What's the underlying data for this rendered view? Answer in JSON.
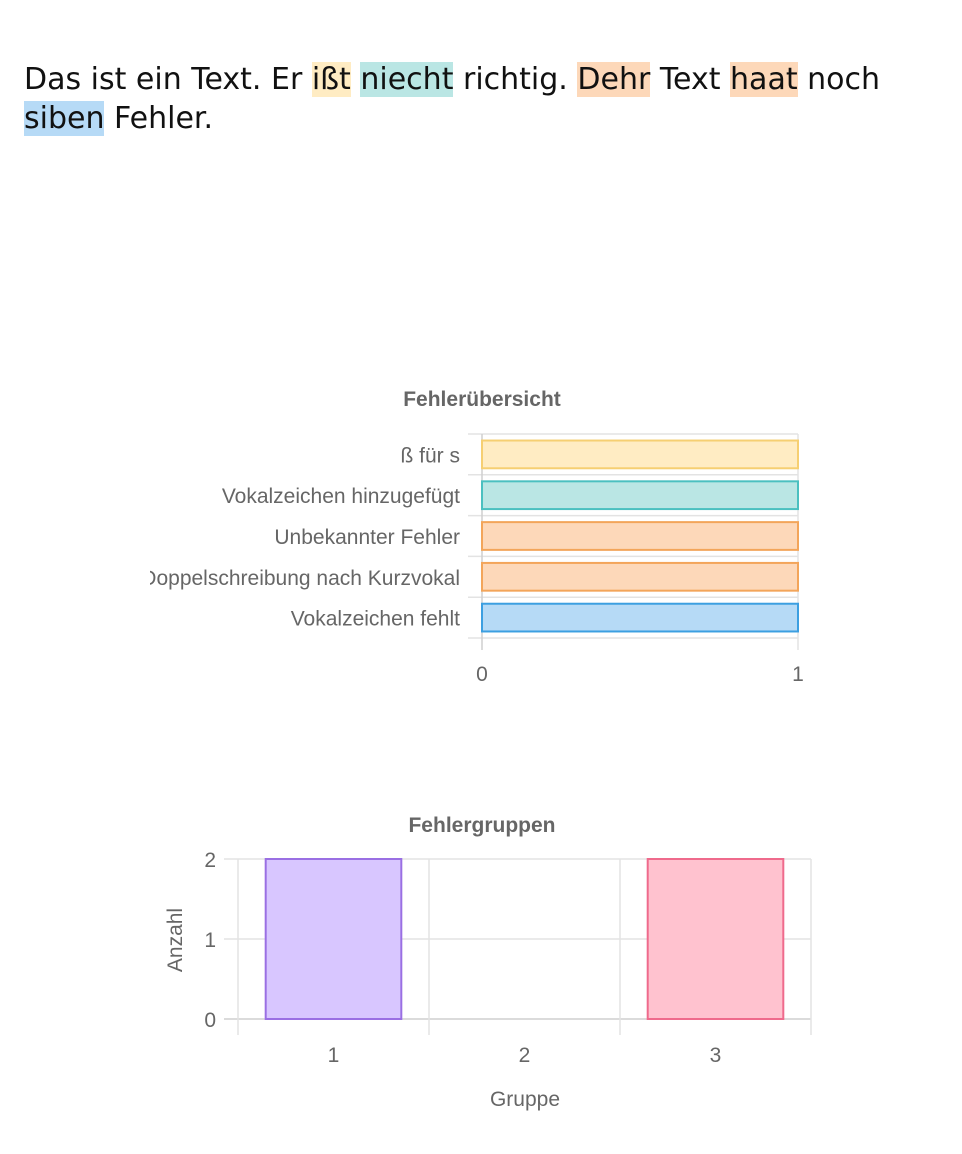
{
  "text": {
    "tokens": [
      {
        "t": "Das ist ein Text. Er "
      },
      {
        "t": "ißt",
        "hl": "#FFECC3"
      },
      {
        "t": " "
      },
      {
        "t": "niecht",
        "hl": "#BAE6E4"
      },
      {
        "t": " richtig. "
      },
      {
        "t": "Dehr",
        "hl": "#FDD8B9"
      },
      {
        "t": " Text "
      },
      {
        "t": "haat",
        "hl": "#FDD8B9"
      },
      {
        "t": " noch "
      },
      {
        "t": "siben",
        "hl": "#B6DAF6"
      },
      {
        "t": " Fehler."
      }
    ]
  },
  "chart_data": [
    {
      "type": "bar",
      "orientation": "horizontal",
      "title": "Fehlerübersicht",
      "categories": [
        "ß für s",
        "Vokalzeichen hinzugefügt",
        "Unbekannter Fehler",
        "Doppelschreibung nach Kurzvokal",
        "Vokalzeichen fehlt"
      ],
      "values": [
        1,
        1,
        1,
        1,
        1
      ],
      "colors": [
        {
          "fill": "#FFECC3",
          "stroke": "#F6CF72"
        },
        {
          "fill": "#BAE6E4",
          "stroke": "#4BC0C0"
        },
        {
          "fill": "#FDD8B9",
          "stroke": "#F3A55A"
        },
        {
          "fill": "#FDD8B9",
          "stroke": "#F3A55A"
        },
        {
          "fill": "#B6DAF6",
          "stroke": "#3C9FE1"
        }
      ],
      "xlim": [
        0,
        1
      ],
      "xticks": [
        "0",
        "1"
      ],
      "grid": true,
      "legend": "none"
    },
    {
      "type": "bar",
      "title": "Fehlergruppen",
      "categories": [
        "1",
        "2",
        "3"
      ],
      "values": [
        2,
        0,
        2
      ],
      "colors": [
        {
          "fill": "#D8C6FF",
          "stroke": "#9A6FE3"
        },
        {
          "fill": "#D8C6FF",
          "stroke": "#9A6FE3"
        },
        {
          "fill": "#FFC2CF",
          "stroke": "#EF6A8C"
        }
      ],
      "ylim": [
        0,
        2
      ],
      "yticks": [
        "0",
        "1",
        "2"
      ],
      "xlabel": "Gruppe",
      "ylabel": "Anzahl",
      "grid": true,
      "legend": "none"
    }
  ]
}
